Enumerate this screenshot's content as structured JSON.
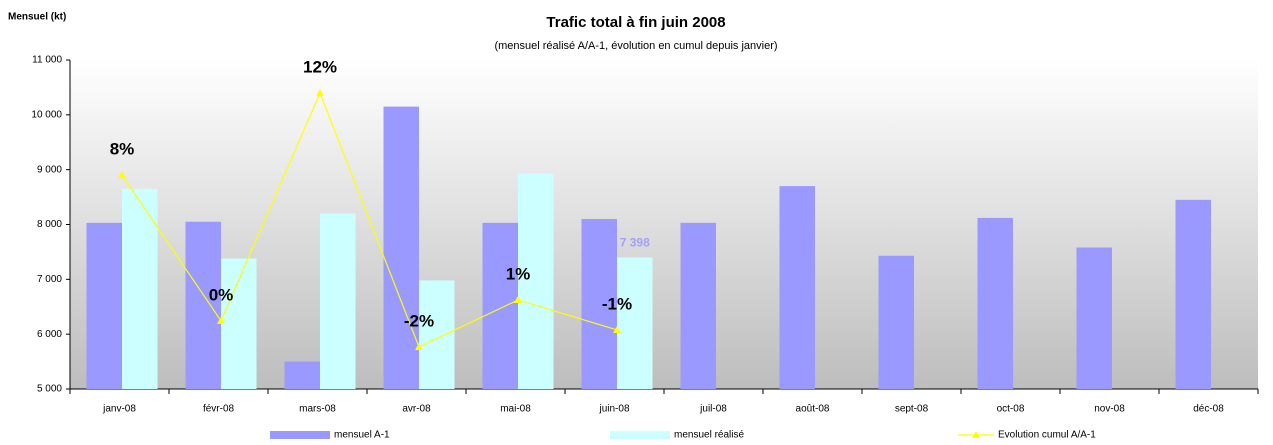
{
  "chart_data": {
    "type": "bar",
    "title": "Trafic total à fin juin 2008",
    "subtitle": "(mensuel réalisé A/A-1, évolution en cumul depuis janvier)",
    "y_label": "Mensuel (kt)",
    "categories": [
      "janv-08",
      "févr-08",
      "mars-08",
      "avr-08",
      "mai-08",
      "juin-08",
      "juil-08",
      "août-08",
      "sept-08",
      "oct-08",
      "nov-08",
      "déc-08"
    ],
    "ylim": [
      5000,
      11000
    ],
    "yticks": [
      {
        "value": 5000,
        "label": "5 000"
      },
      {
        "value": 6000,
        "label": "6 000"
      },
      {
        "value": 7000,
        "label": "7 000"
      },
      {
        "value": 8000,
        "label": "8 000"
      },
      {
        "value": 9000,
        "label": "9 000"
      },
      {
        "value": 10000,
        "label": "10 000"
      },
      {
        "value": 11000,
        "label": "11 000"
      }
    ],
    "y2lim": [
      -4,
      14
    ],
    "series": [
      {
        "name": "mensuel A-1",
        "type": "bar",
        "color": "#9999ff",
        "values": [
          8030,
          8050,
          5500,
          10150,
          8030,
          8100,
          8030,
          8700,
          7430,
          8120,
          7580,
          8450
        ]
      },
      {
        "name": "mensuel réalisé",
        "type": "bar",
        "color": "#ccffff",
        "values": [
          8650,
          7380,
          8200,
          6980,
          8930,
          7398,
          null,
          null,
          null,
          null,
          null,
          null
        ],
        "value_labels": [
          null,
          null,
          null,
          null,
          null,
          "7 398",
          null,
          null,
          null,
          null,
          null,
          null
        ]
      },
      {
        "name": "Evolution cumul A/A-1",
        "type": "line",
        "axis": "y2",
        "color": "#ffff00",
        "values": [
          7.7,
          -0.27,
          12.2,
          -1.7,
          0.87,
          -0.77,
          null,
          null,
          null,
          null,
          null,
          null
        ],
        "value_labels": [
          "8%",
          "0%",
          "12%",
          "-2%",
          "1%",
          "-1%",
          null,
          null,
          null,
          null,
          null,
          null
        ]
      }
    ]
  }
}
